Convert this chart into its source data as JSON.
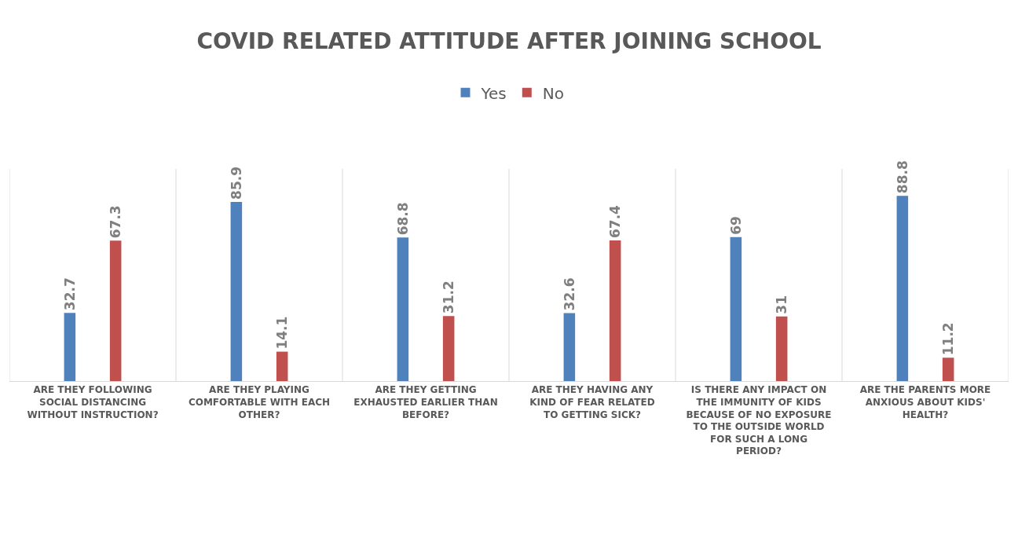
{
  "chart_data": {
    "type": "bar",
    "title": "COVID RELATED ATTITUDE AFTER JOINING SCHOOL",
    "categories": [
      "ARE THEY FOLLOWING SOCIAL DISTANCING WITHOUT INSTRUCTION?",
      "ARE THEY PLAYING COMFORTABLE WITH EACH OTHER?",
      "ARE THEY GETTING EXHAUSTED EARLIER THAN BEFORE?",
      "ARE THEY HAVING ANY KIND OF FEAR RELATED TO GETTING SICK?",
      "IS THERE ANY IMPACT ON THE IMMUNITY OF KIDS BECAUSE OF NO EXPOSURE TO THE OUTSIDE WORLD FOR SUCH A LONG PERIOD?",
      "ARE THE PARENTS MORE ANXIOUS ABOUT KIDS' HEALTH?"
    ],
    "series": [
      {
        "name": "Yes",
        "color": "#4f81bd",
        "values": [
          32.7,
          85.9,
          68.8,
          32.6,
          69,
          88.8
        ]
      },
      {
        "name": "No",
        "color": "#c0504d",
        "values": [
          67.3,
          14.1,
          31.2,
          67.4,
          31,
          11.2
        ]
      }
    ],
    "data_labels": true,
    "grid": "x",
    "legend": "top"
  }
}
